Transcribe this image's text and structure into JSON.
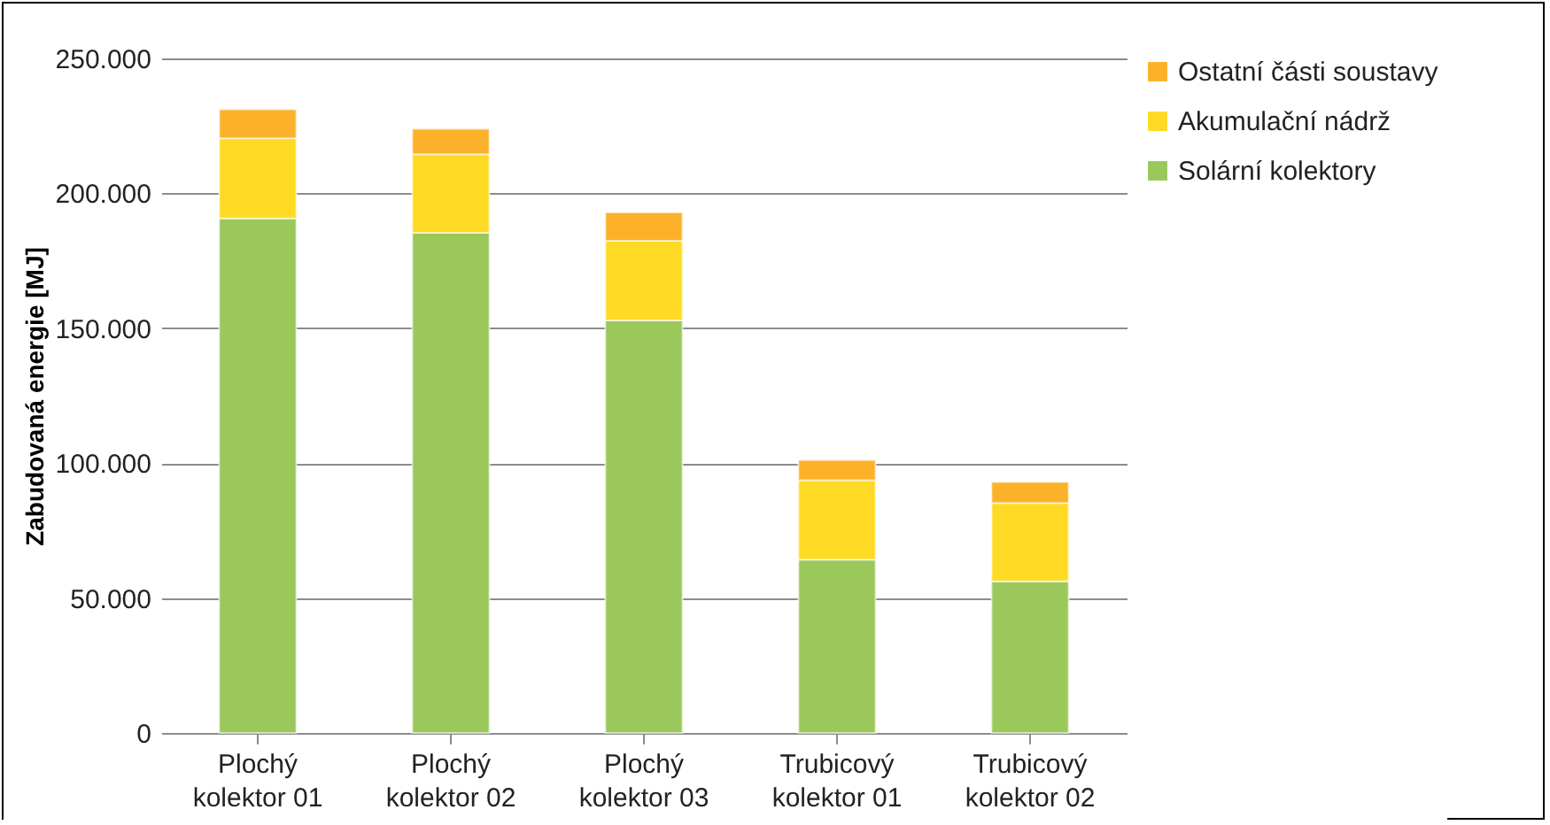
{
  "chart_data": {
    "type": "bar",
    "stacked": true,
    "ylabel": "Zabudovaná energie [MJ]",
    "categories": [
      "Plochý kolektor 01",
      "Plochý kolektor 02",
      "Plochý kolektor 03",
      "Trubicový kolektor 01",
      "Trubicový kolektor 02"
    ],
    "series": [
      {
        "name": "Solární kolektory",
        "color": "#9bc85a",
        "values": [
          190700,
          185400,
          152900,
          64200,
          56200
        ]
      },
      {
        "name": "Akumulační nádrž",
        "color": "#ffda24",
        "values": [
          29700,
          29100,
          29500,
          29500,
          29000
        ]
      },
      {
        "name": "Ostatní části soustavy",
        "color": "#fbb22a",
        "values": [
          10700,
          9400,
          10500,
          7400,
          7800
        ]
      }
    ],
    "ylim": [
      0,
      250000
    ],
    "yticks": [
      0,
      {
        "value": 50000,
        "label": "50.000"
      },
      {
        "value": 100000,
        "label": "100.000"
      },
      {
        "value": 150000,
        "label": "150.000"
      },
      {
        "value": 200000,
        "label": "200.000"
      },
      {
        "value": 250000,
        "label": "250.000"
      }
    ],
    "grid": "y",
    "legend": "right"
  }
}
